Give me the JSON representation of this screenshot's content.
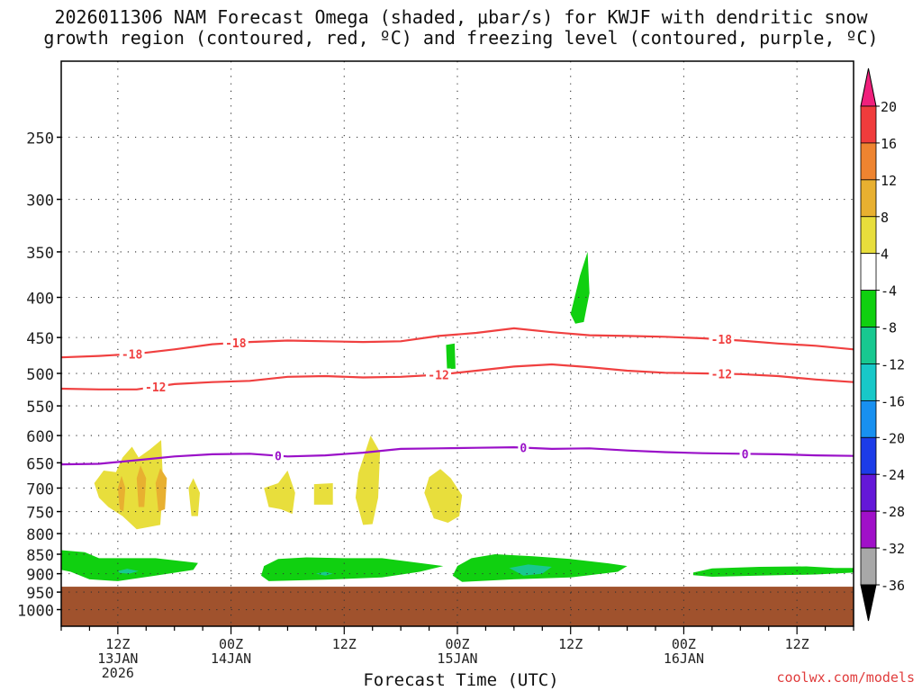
{
  "chart_data": {
    "type": "time-height cross section",
    "title_lines": [
      "2026011306 NAM Forecast Omega (shaded, μbar/s) for KWJF with dendritic snow",
      "growth region (contoured, red, ºC) and freezing level (contoured, purple, ºC)"
    ],
    "xlabel": "Forecast Time (UTC)",
    "credit": "coolwx.com/models",
    "x_range_hours": [
      6,
      90
    ],
    "y_axis": {
      "unit": "hPa",
      "range": [
        200,
        1050
      ],
      "ticks": [
        250,
        300,
        350,
        400,
        450,
        500,
        550,
        600,
        650,
        700,
        750,
        800,
        850,
        900,
        950,
        1000
      ]
    },
    "x_ticks": [
      {
        "hour": 12,
        "lines": [
          "12Z",
          "13JAN",
          "2026"
        ]
      },
      {
        "hour": 24,
        "lines": [
          "00Z",
          "14JAN"
        ]
      },
      {
        "hour": 36,
        "lines": [
          "12Z"
        ]
      },
      {
        "hour": 48,
        "lines": [
          "00Z",
          "15JAN"
        ]
      },
      {
        "hour": 60,
        "lines": [
          "12Z"
        ]
      },
      {
        "hour": 72,
        "lines": [
          "00Z",
          "16JAN"
        ]
      },
      {
        "hour": 84,
        "lines": [
          "12Z"
        ]
      }
    ],
    "colorbar": {
      "levels": [
        20,
        16,
        12,
        8,
        4,
        -4,
        -8,
        -12,
        -16,
        -20,
        -24,
        -28,
        -32,
        -36
      ],
      "colors": [
        "#f03c3c",
        "#ee8430",
        "#e8b030",
        "#e8de3c",
        "#ffffff",
        "#10d010",
        "#18c890",
        "#18c8c8",
        "#1890f0",
        "#1c3ce8",
        "#6418d8",
        "#a010c8",
        "#a8a8a8"
      ],
      "top_arrow_color": "#f0207c",
      "bottom_arrow_color": "#000000"
    },
    "ground": {
      "above_hpa": 935,
      "color": "#a0522d"
    },
    "contours": [
      {
        "label": "-18",
        "color": "#f04040",
        "label_hours": [
          13.5,
          24.5,
          76
        ],
        "points": [
          [
            6,
            477
          ],
          [
            10,
            475
          ],
          [
            14,
            472
          ],
          [
            18,
            466
          ],
          [
            22,
            459
          ],
          [
            26,
            456
          ],
          [
            30,
            454
          ],
          [
            34,
            455
          ],
          [
            38,
            456
          ],
          [
            42,
            455
          ],
          [
            46,
            448
          ],
          [
            50,
            444
          ],
          [
            54,
            438
          ],
          [
            58,
            443
          ],
          [
            62,
            447
          ],
          [
            66,
            448
          ],
          [
            70,
            449
          ],
          [
            74,
            451
          ],
          [
            78,
            454
          ],
          [
            82,
            458
          ],
          [
            86,
            461
          ],
          [
            90,
            466
          ]
        ]
      },
      {
        "label": "-12",
        "color": "#f04040",
        "label_hours": [
          16,
          46,
          76
        ],
        "points": [
          [
            6,
            523
          ],
          [
            10,
            524
          ],
          [
            14,
            524
          ],
          [
            18,
            516
          ],
          [
            22,
            513
          ],
          [
            26,
            511
          ],
          [
            30,
            505
          ],
          [
            34,
            504
          ],
          [
            38,
            506
          ],
          [
            42,
            505
          ],
          [
            46,
            502
          ],
          [
            50,
            496
          ],
          [
            54,
            490
          ],
          [
            58,
            487
          ],
          [
            62,
            491
          ],
          [
            66,
            496
          ],
          [
            70,
            499
          ],
          [
            74,
            500
          ],
          [
            78,
            501
          ],
          [
            82,
            504
          ],
          [
            86,
            509
          ],
          [
            90,
            513
          ]
        ]
      },
      {
        "label": "0",
        "color": "#9a10c8",
        "label_hours": [
          29,
          55,
          78.5
        ],
        "points": [
          [
            6,
            653
          ],
          [
            10,
            652
          ],
          [
            14,
            645
          ],
          [
            18,
            638
          ],
          [
            22,
            634
          ],
          [
            26,
            633
          ],
          [
            30,
            638
          ],
          [
            34,
            636
          ],
          [
            38,
            631
          ],
          [
            42,
            624
          ],
          [
            46,
            623
          ],
          [
            50,
            622
          ],
          [
            54,
            621
          ],
          [
            58,
            624
          ],
          [
            62,
            623
          ],
          [
            66,
            627
          ],
          [
            70,
            630
          ],
          [
            74,
            632
          ],
          [
            78,
            633
          ],
          [
            82,
            634
          ],
          [
            86,
            636
          ],
          [
            90,
            637
          ]
        ]
      }
    ],
    "omega_regions": [
      {
        "value": 4,
        "points": [
          [
            12,
            690
          ],
          [
            15,
            660
          ],
          [
            17,
            690
          ],
          [
            16,
            780
          ],
          [
            12,
            780
          ]
        ],
        "note": "updraft/downdraft blob"
      },
      {
        "value": -4,
        "points": [
          [
            6,
            855
          ],
          [
            20,
            870
          ],
          [
            20,
            895
          ],
          [
            10,
            910
          ],
          [
            6,
            900
          ]
        ]
      },
      {
        "value": -4,
        "points": [
          [
            27,
            875
          ],
          [
            44,
            880
          ],
          [
            44,
            910
          ],
          [
            27,
            920
          ]
        ]
      },
      {
        "value": -4,
        "points": [
          [
            48,
            865
          ],
          [
            64,
            875
          ],
          [
            64,
            910
          ],
          [
            48,
            925
          ]
        ]
      }
    ]
  }
}
